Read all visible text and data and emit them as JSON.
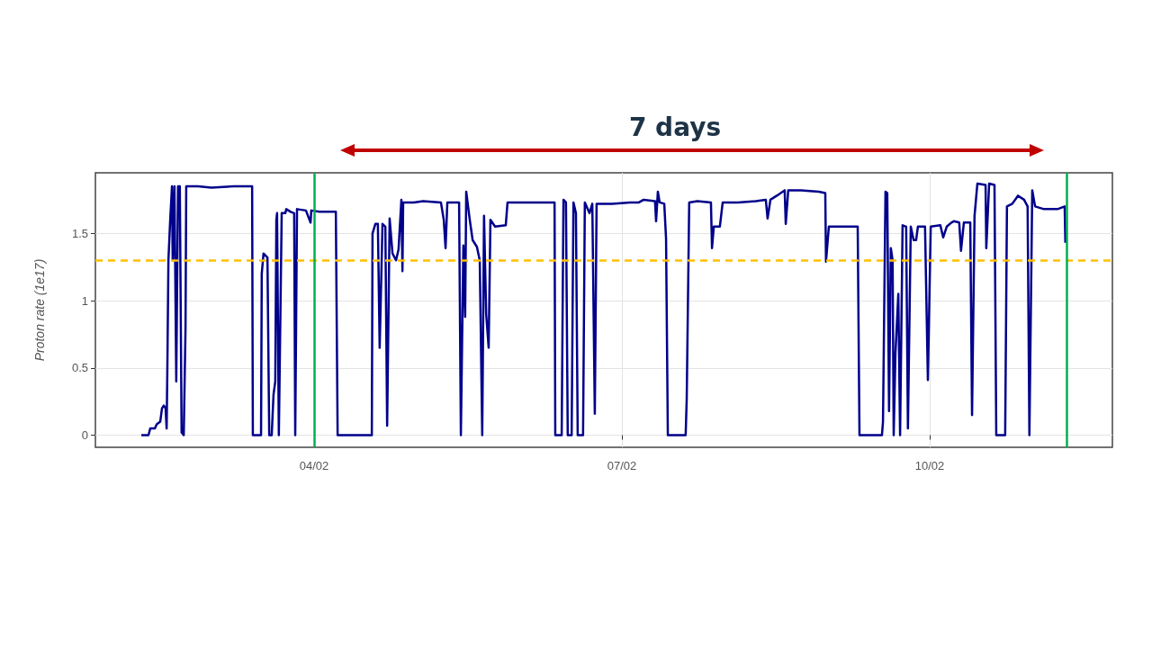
{
  "chart_data": {
    "type": "line",
    "title": "7 days",
    "ylabel": "Proton rate (1e17)",
    "xlim": [
      "--02-01T20:50",
      "--02-11T18:45"
    ],
    "xticks": [
      {
        "value": "--02-04",
        "label": "04/02"
      },
      {
        "value": "--02-07",
        "label": "07/02"
      },
      {
        "value": "--02-10",
        "label": "10/02"
      }
    ],
    "ylim": [
      -0.09,
      1.95
    ],
    "yticks": [
      0,
      0.5,
      1,
      1.5
    ],
    "grid": true,
    "ref_lines": [
      {
        "axis": "y",
        "value": 1.3,
        "color": "#ffc000",
        "line_style": "dashed"
      },
      {
        "axis": "x",
        "value": "--02-04",
        "color": "#00b050",
        "line_style": "solid"
      },
      {
        "axis": "x",
        "value": "--02-11T08:00",
        "color": "#00b050",
        "line_style": "solid"
      }
    ],
    "series": [
      {
        "color": "#00008b",
        "x": [
          "--02-02T07:35",
          "--02-02T09:15",
          "--02-02T09:40",
          "--02-02T10:45",
          "--02-02T11:10",
          "--02-02T12:00",
          "--02-02T12:25",
          "--02-02T12:50",
          "--02-02T13:15",
          "--02-02T13:30",
          "--02-02T13:40",
          "--02-02T13:55",
          "--02-02T14:20",
          "--02-02T14:45",
          "--02-02T14:55",
          "--02-02T15:20",
          "--02-02T15:45",
          "--02-02T16:10",
          "--02-02T16:35",
          "--02-02T17:00",
          "--02-02T17:30",
          "--02-02T17:55",
          "--02-02T18:05",
          "--02-02T20:50",
          "--02-03T00:00",
          "--02-03T05:15",
          "--02-03T09:30",
          "--02-03T09:40",
          "--02-03T11:35",
          "--02-03T11:45",
          "--02-03T12:10",
          "--02-03T13:05",
          "--02-03T13:30",
          "--02-03T14:05",
          "--02-03T14:30",
          "--02-03T14:55",
          "--02-03T15:10",
          "--02-03T15:20",
          "--02-03T15:45",
          "--02-03T16:25",
          "--02-03T17:15",
          "--02-03T17:30",
          "--02-03T18:30",
          "--02-03T19:20",
          "--02-03T19:35",
          "--02-03T20:00",
          "--02-03T22:05",
          "--02-03T23:10",
          "--02-03T23:20",
          "--02-04T01:15",
          "--02-04T05:05",
          "--02-04T05:30",
          "--02-04T13:30",
          "--02-04T13:40",
          "--02-04T14:20",
          "--02-04T14:55",
          "--02-04T15:20",
          "--02-04T16:00",
          "--02-04T16:40",
          "--02-04T17:05",
          "--02-04T17:40",
          "--02-04T18:20",
          "--02-04T19:10",
          "--02-04T19:45",
          "--02-04T20:25",
          "--02-04T20:40",
          "--02-04T20:50",
          "--02-04T23:20",
          "--02-05T01:30",
          "--02-05T05:40",
          "--02-05T06:20",
          "--02-05T06:45",
          "--02-05T07:10",
          "--02-05T09:55",
          "--02-05T10:20",
          "--02-05T10:55",
          "--02-05T11:20",
          "--02-05T11:35",
          "--02-05T12:25",
          "--02-05T13:05",
          "--02-05T14:05",
          "--02-05T14:45",
          "--02-05T15:20",
          "--02-05T15:45",
          "--02-05T16:15",
          "--02-05T16:50",
          "--02-05T17:15",
          "--02-05T18:20",
          "--02-05T20:50",
          "--02-05T21:15",
          "--02-06T00:40",
          "--02-06T04:50",
          "--02-06T08:15",
          "--02-06T08:25",
          "--02-06T09:55",
          "--02-06T10:20",
          "--02-06T10:55",
          "--02-06T11:20",
          "--02-06T12:15",
          "--02-06T12:40",
          "--02-06T13:15",
          "--02-06T13:40",
          "--02-06T14:55",
          "--02-06T15:20",
          "--02-06T16:25",
          "--02-06T17:05",
          "--02-06T17:40",
          "--02-06T18:05",
          "--02-06T21:40",
          "--02-07T01:55",
          "--02-07T04:00",
          "--02-07T05:05",
          "--02-07T07:45",
          "--02-07T08:00",
          "--02-07T08:25",
          "--02-07T08:50",
          "--02-07T09:55",
          "--02-07T10:20",
          "--02-07T10:45",
          "--02-07T12:25",
          "--02-07T14:55",
          "--02-07T15:10",
          "--02-07T15:45",
          "--02-07T17:40",
          "--02-07T20:50",
          "--02-07T21:05",
          "--02-07T21:30",
          "--02-07T22:55",
          "--02-07T23:35",
          "--02-08T03:10",
          "--02-08T07:20",
          "--02-08T09:40",
          "--02-08T10:05",
          "--02-08T10:45",
          "--02-08T12:15",
          "--02-08T14:05",
          "--02-08T14:20",
          "--02-08T14:55",
          "--02-08T17:55",
          "--02-08T22:05",
          "--02-08T23:35",
          "--02-08T23:45",
          "--02-09T00:25",
          "--02-09T04:25",
          "--02-09T07:10",
          "--02-09T07:35",
          "--02-09T12:50",
          "--02-09T13:05",
          "--02-09T13:40",
          "--02-09T14:05",
          "--02-09T14:30",
          "--02-09T14:55",
          "--02-09T15:20",
          "--02-09T15:35",
          "--02-09T16:00",
          "--02-09T16:40",
          "--02-09T17:05",
          "--02-09T17:40",
          "--02-09T18:30",
          "--02-09T18:55",
          "--02-09T19:35",
          "--02-09T20:15",
          "--02-09T20:50",
          "--02-09T21:15",
          "--02-09T22:55",
          "--02-09T23:35",
          "--02-10T00:15",
          "--02-10T02:30",
          "--02-10T03:10",
          "--02-10T04:00",
          "--02-10T05:05",
          "--02-10T05:40",
          "--02-10T06:55",
          "--02-10T07:20",
          "--02-10T08:00",
          "--02-10T09:30",
          "--02-10T09:55",
          "--02-10T10:30",
          "--02-10T11:10",
          "--02-10T13:05",
          "--02-10T13:15",
          "--02-10T13:55",
          "--02-10T15:10",
          "--02-10T15:35",
          "--02-10T17:40",
          "--02-10T18:05",
          "--02-10T19:20",
          "--02-10T20:40",
          "--02-10T22:05",
          "--02-10T22:55",
          "--02-10T23:20",
          "--02-11T00:00",
          "--02-11T00:40",
          "--02-11T02:45",
          "--02-11T05:55",
          "--02-11T07:35",
          "--02-11T07:45"
        ],
        "values": [
          0,
          0,
          0.05,
          0.05,
          0.08,
          0.1,
          0.2,
          0.22,
          0.2,
          0.05,
          0.5,
          1.3,
          1.6,
          1.85,
          1.3,
          1.85,
          0.4,
          1.85,
          1.85,
          0.02,
          0,
          0.8,
          1.85,
          1.85,
          1.84,
          1.85,
          1.85,
          0,
          0,
          1.2,
          1.35,
          1.32,
          0,
          0,
          0.3,
          0.4,
          1.6,
          1.65,
          0,
          1.65,
          1.65,
          1.68,
          1.66,
          1.65,
          0,
          1.68,
          1.67,
          1.58,
          1.67,
          1.66,
          1.66,
          0,
          0,
          1.5,
          1.57,
          1.57,
          0.65,
          1.57,
          1.55,
          0.07,
          1.61,
          1.35,
          1.3,
          1.38,
          1.75,
          1.22,
          1.73,
          1.73,
          1.74,
          1.73,
          1.6,
          1.39,
          1.73,
          1.73,
          0,
          1.41,
          0.88,
          1.81,
          1.6,
          1.45,
          1.4,
          1.3,
          0,
          1.63,
          0.9,
          0.65,
          1.6,
          1.55,
          1.56,
          1.73,
          1.73,
          1.73,
          1.73,
          0,
          0,
          1.75,
          1.73,
          0,
          0,
          1.73,
          1.65,
          0,
          0,
          1.73,
          1.65,
          1.72,
          0.16,
          1.72,
          1.72,
          1.73,
          1.73,
          1.75,
          1.74,
          1.59,
          1.81,
          1.73,
          1.72,
          1.46,
          0,
          0,
          0,
          0.27,
          1.73,
          1.74,
          1.73,
          1.39,
          1.55,
          1.55,
          1.73,
          1.73,
          1.74,
          1.75,
          1.61,
          1.75,
          1.78,
          1.82,
          1.57,
          1.82,
          1.82,
          1.81,
          1.8,
          1.29,
          1.55,
          1.55,
          1.55,
          0,
          0,
          0.1,
          1.81,
          1.8,
          0.18,
          1.39,
          1.3,
          0,
          0.61,
          1.05,
          0,
          1.56,
          1.55,
          0.05,
          1.55,
          1.45,
          1.45,
          1.55,
          1.55,
          0.41,
          1.55,
          1.56,
          1.47,
          1.55,
          1.58,
          1.59,
          1.58,
          1.37,
          1.58,
          1.58,
          0.15,
          1.63,
          1.87,
          1.86,
          1.39,
          1.87,
          1.86,
          0,
          0,
          1.7,
          1.72,
          1.78,
          1.75,
          1.7,
          0,
          1.82,
          1.7,
          1.68,
          1.68,
          1.7,
          1.43
        ]
      }
    ]
  }
}
